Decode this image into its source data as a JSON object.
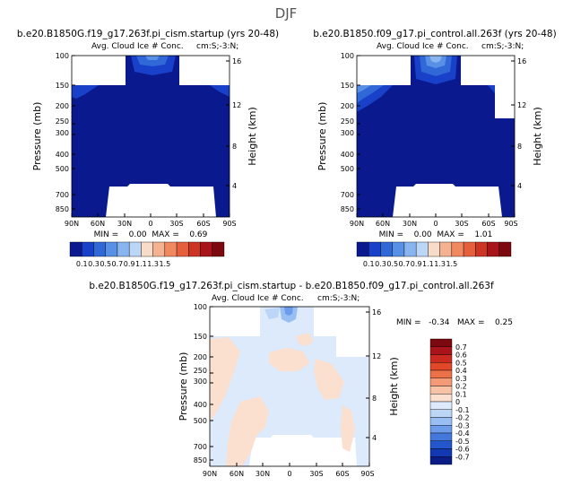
{
  "page_title": "DJF",
  "panels": [
    {
      "id": "cism",
      "title": "b.e20.B1850G.f19_g17.263f.pi_cism.startup (yrs 20-48)",
      "subtitle": "Avg. Cloud Ice # Conc.",
      "region": "cm:S;-3:N;",
      "stats": "MIN =    0.00  MAX =    0.69"
    },
    {
      "id": "control",
      "title": "b.e20.B1850.f09_g17.pi_control.all.263f (yrs 20-48)",
      "subtitle": "Avg. Cloud Ice # Conc.",
      "region": "cm:S;-3:N;",
      "stats": "MIN =    0.00  MAX =    1.01"
    },
    {
      "id": "diff",
      "title": "b.e20.B1850G.f19_g17.263f.pi_cism.startup - b.e20.B1850.f09_g17.pi_control.all.263f",
      "subtitle": "Avg. Cloud Ice # Conc.",
      "region": "cm:S;-3:N;",
      "stats": "MIN =   -0.34   MAX =    0.25"
    }
  ],
  "chart_data": [
    {
      "type": "heatmap",
      "panel": "cism",
      "xlabel": "",
      "ylabel": "Pressure (mb)",
      "y2label": "Height (km)",
      "x_ticks": [
        "90N",
        "60N",
        "30N",
        "0",
        "30S",
        "60S",
        "90S"
      ],
      "y_ticks": [
        "100",
        "150",
        "200",
        "250",
        "300",
        "400",
        "500",
        "700",
        "850"
      ],
      "y2_ticks": [
        "16",
        "12",
        "8",
        "4"
      ],
      "max_value": 0.69,
      "min_value": 0.0,
      "levels": [
        0.1,
        0.3,
        0.5,
        0.7,
        0.9,
        1.1,
        1.3,
        1.5
      ],
      "colorbar_labels": [
        "0.1",
        "0.3",
        "0.5",
        "0.7",
        "0.9",
        "1.1",
        "1.3",
        "1.5"
      ]
    },
    {
      "type": "heatmap",
      "panel": "control",
      "xlabel": "",
      "ylabel": "Pressure (mb)",
      "y2label": "Height (km)",
      "x_ticks": [
        "90N",
        "60N",
        "30N",
        "0",
        "30S",
        "60S",
        "90S"
      ],
      "y_ticks": [
        "100",
        "150",
        "200",
        "250",
        "300",
        "400",
        "500",
        "700",
        "850"
      ],
      "y2_ticks": [
        "16",
        "12",
        "8",
        "4"
      ],
      "max_value": 1.01,
      "min_value": 0.0,
      "levels": [
        0.1,
        0.3,
        0.5,
        0.7,
        0.9,
        1.1,
        1.3,
        1.5
      ],
      "colorbar_labels": [
        "0.1",
        "0.3",
        "0.5",
        "0.7",
        "0.9",
        "1.1",
        "1.3",
        "1.5"
      ]
    },
    {
      "type": "heatmap",
      "panel": "diff",
      "xlabel": "",
      "ylabel": "Pressure (mb)",
      "y2label": "Height (km)",
      "x_ticks": [
        "90N",
        "60N",
        "30N",
        "0",
        "30S",
        "60S",
        "90S"
      ],
      "y_ticks": [
        "100",
        "150",
        "200",
        "250",
        "300",
        "400",
        "500",
        "700",
        "850"
      ],
      "y2_ticks": [
        "16",
        "12",
        "8",
        "4"
      ],
      "max_value": 0.25,
      "min_value": -0.34,
      "levels": [
        0.7,
        0.6,
        0.5,
        0.4,
        0.3,
        0.2,
        0.1,
        0,
        -0.1,
        -0.2,
        -0.3,
        -0.4,
        -0.5,
        -0.6,
        -0.7
      ],
      "colorbar_labels": [
        "0.7",
        "0.6",
        "0.5",
        "0.4",
        "0.3",
        "0.2",
        "0.1",
        "0",
        "-0.1",
        "-0.2",
        "-0.3",
        "-0.4",
        "-0.5",
        "-0.6",
        "-0.7"
      ]
    }
  ],
  "colors": {
    "seq": [
      "#0a1a8e",
      "#1840c8",
      "#3068d8",
      "#5890e6",
      "#88b4f0",
      "#bcd6f8",
      "#f8dcc8",
      "#f6b290",
      "#f08860",
      "#e4603c",
      "#cc3424",
      "#a8141a",
      "#7c0810"
    ],
    "div": [
      "#7c0810",
      "#a8141a",
      "#cc2a20",
      "#e04828",
      "#ec7048",
      "#f49a78",
      "#f8c2a6",
      "#fbe0d0",
      "#dceafc",
      "#bcd6f8",
      "#98bef4",
      "#6c9cea",
      "#4478dc",
      "#2456cc",
      "#1238b2",
      "#0a1c86"
    ],
    "dark_blue": "#0a1a8e",
    "peach": "#fbe0d0",
    "light_blue": "#dceafc"
  }
}
